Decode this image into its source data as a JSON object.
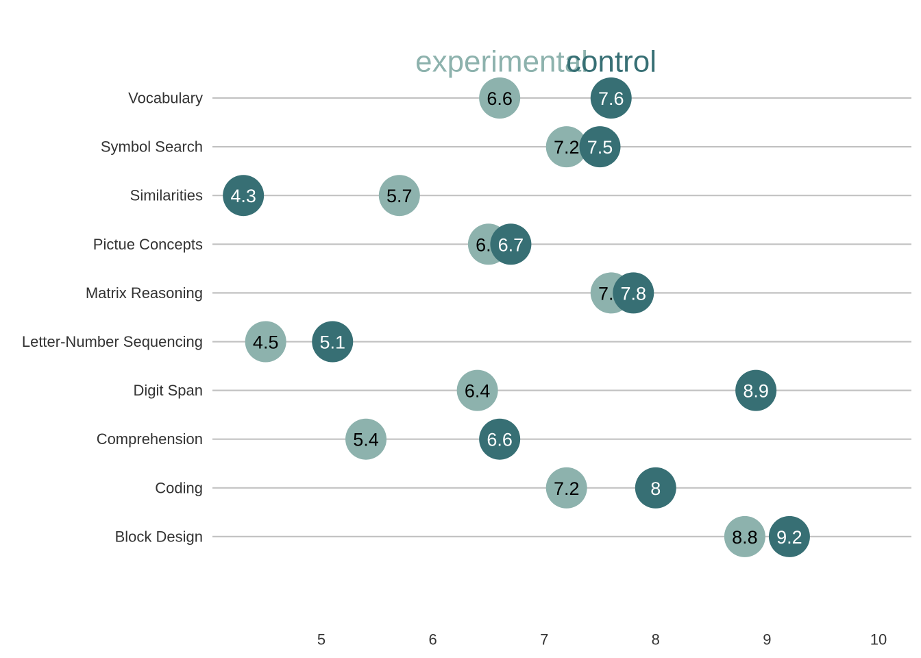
{
  "chart_data": {
    "type": "scatter",
    "title": "",
    "xlabel": "",
    "ylabel": "",
    "xlim": [
      4.1,
      10.3
    ],
    "x_ticks": [
      5,
      6,
      7,
      8,
      9,
      10
    ],
    "categories": [
      "Vocabulary",
      "Symbol Search",
      "Similarities",
      "Pictue Concepts",
      "Matrix Reasoning",
      "Letter-Number Sequencing",
      "Digit Span",
      "Comprehension",
      "Coding",
      "Block Design"
    ],
    "series": [
      {
        "name": "experimental",
        "color": "#8db2ad",
        "text_color": "#000000",
        "values": [
          6.6,
          7.2,
          5.7,
          6.5,
          7.6,
          4.5,
          6.4,
          5.4,
          7.2,
          8.8
        ]
      },
      {
        "name": "control",
        "color": "#376f74",
        "text_color": "#ffffff",
        "values": [
          7.6,
          7.5,
          4.3,
          6.7,
          7.8,
          5.1,
          8.9,
          6.6,
          8.0,
          9.2
        ]
      }
    ],
    "legend_position": "top-center",
    "grid": "horizontal"
  }
}
